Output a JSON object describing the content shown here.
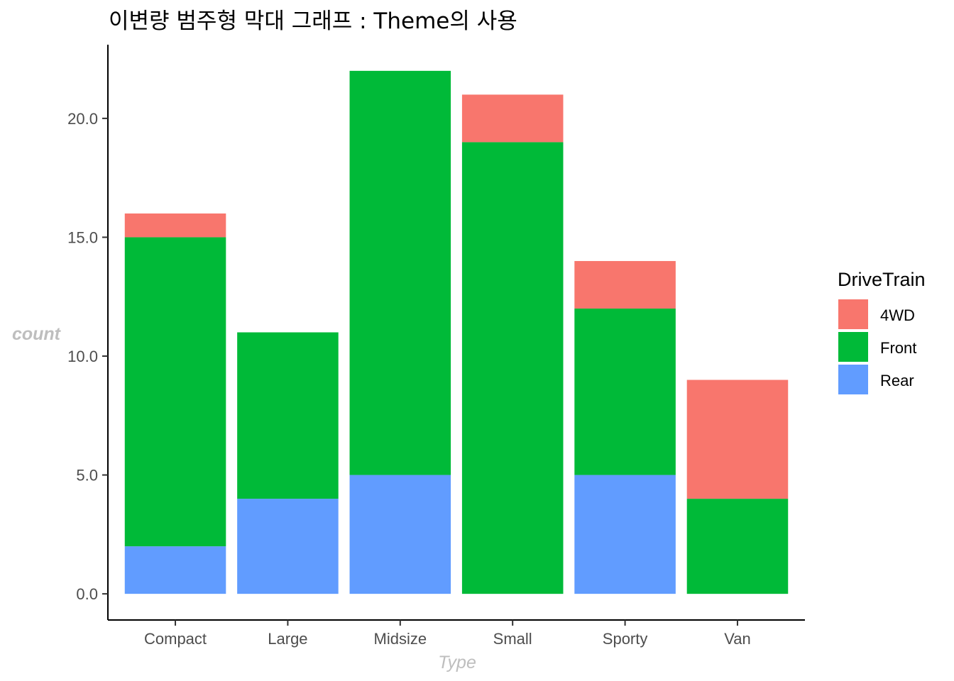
{
  "chart_data": {
    "type": "bar",
    "stacked": true,
    "title": "이변량 범주형 막대 그래프 : Theme의 사용",
    "xlabel": "Type",
    "ylabel": "count",
    "categories": [
      "Compact",
      "Large",
      "Midsize",
      "Small",
      "Sporty",
      "Van"
    ],
    "series": [
      {
        "name": "4WD",
        "color": "#F8766D",
        "values": [
          1,
          0,
          0,
          2,
          2,
          5
        ]
      },
      {
        "name": "Front",
        "color": "#00BA38",
        "values": [
          13,
          7,
          17,
          19,
          7,
          4
        ]
      },
      {
        "name": "Rear",
        "color": "#619CFF",
        "values": [
          2,
          4,
          5,
          0,
          5,
          0
        ]
      }
    ],
    "ylim": [
      -1.1,
      23.1
    ],
    "yticks": [
      0,
      5,
      10,
      15,
      20
    ],
    "ytick_labels": [
      "0.0",
      "5.0",
      "10.0",
      "15.0",
      "20.0"
    ],
    "legend": {
      "title": "DriveTrain",
      "position": "right"
    },
    "grid": false
  }
}
